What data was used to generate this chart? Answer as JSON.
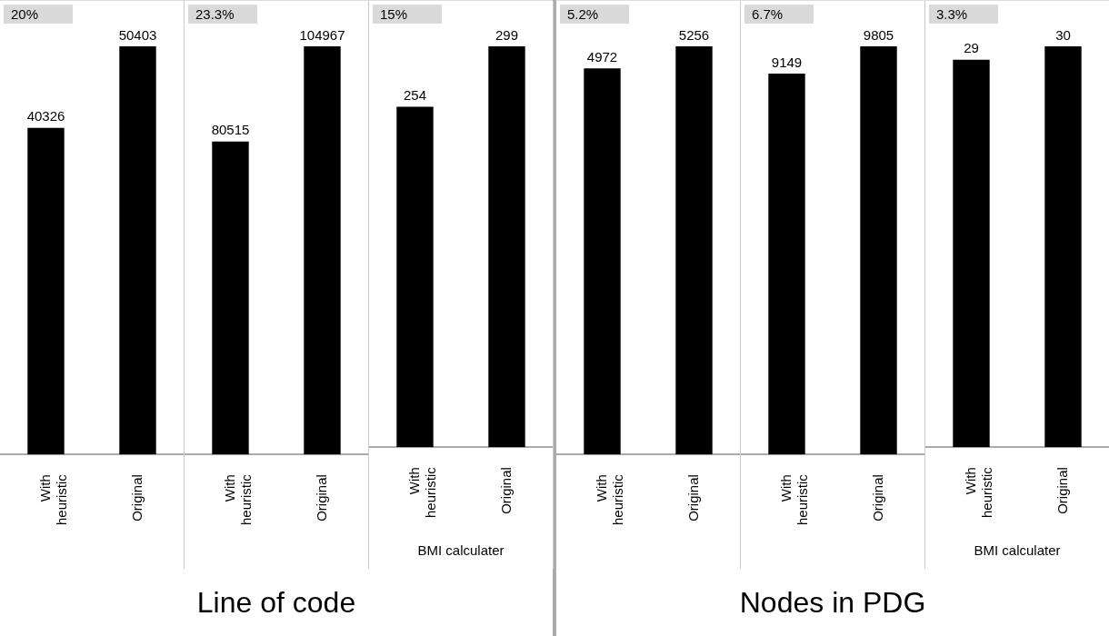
{
  "chart_data": [
    {
      "type": "bar",
      "categories": [
        "With heuristic",
        "Original"
      ],
      "values": [
        40326,
        50403
      ],
      "color": "#000000",
      "data_labels": true,
      "legend": false,
      "annotations": [
        "20%",
        "Line of code"
      ]
    },
    {
      "type": "bar",
      "categories": [
        "With heuristic",
        "Original"
      ],
      "values": [
        80515,
        104967
      ],
      "color": "#000000",
      "data_labels": true,
      "legend": false,
      "annotations": [
        "23.3%"
      ]
    },
    {
      "type": "bar",
      "categories": [
        "With heuristic",
        "Original"
      ],
      "values": [
        254,
        299
      ],
      "color": "#000000",
      "data_labels": true,
      "legend": false,
      "xlabel": "BMI calculater",
      "annotations": [
        "15%"
      ]
    },
    {
      "type": "bar",
      "categories": [
        "With heuristic",
        "Original"
      ],
      "values": [
        4972,
        5256
      ],
      "color": "#000000",
      "data_labels": true,
      "legend": false,
      "annotations": [
        "5.2%",
        "Nodes in PDG"
      ]
    },
    {
      "type": "bar",
      "categories": [
        "With heuristic",
        "Original"
      ],
      "values": [
        9149,
        9805
      ],
      "color": "#000000",
      "data_labels": true,
      "legend": false,
      "annotations": [
        "6.7%"
      ]
    },
    {
      "type": "bar",
      "categories": [
        "With heuristic",
        "Original"
      ],
      "values": [
        29,
        30
      ],
      "color": "#000000",
      "data_labels": true,
      "legend": false,
      "xlabel": "BMI calculater",
      "annotations": [
        "3.3%"
      ]
    }
  ]
}
